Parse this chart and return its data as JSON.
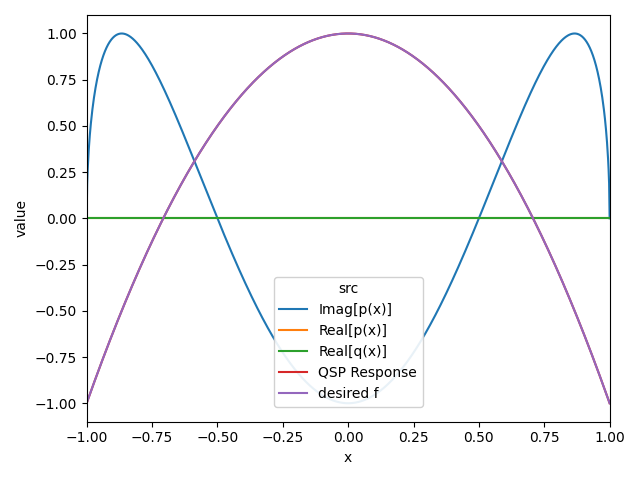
{
  "title": "",
  "xlabel": "x",
  "ylabel": "value",
  "xlim": [
    -1.0,
    1.0
  ],
  "ylim": [
    -1.1,
    1.1
  ],
  "legend_title": "src",
  "lines": [
    {
      "label": "Imag[p(x)]",
      "color": "#1f77b4",
      "linewidth": 1.5
    },
    {
      "label": "Real[p(x)]",
      "color": "#ff7f0e",
      "linewidth": 1.5
    },
    {
      "label": "Real[q(x)]",
      "color": "#2ca02c",
      "linewidth": 1.5
    },
    {
      "label": "QSP Response",
      "color": "#d62728",
      "linewidth": 1.5
    },
    {
      "label": "desired f",
      "color": "#9467bd",
      "linewidth": 1.5
    }
  ]
}
